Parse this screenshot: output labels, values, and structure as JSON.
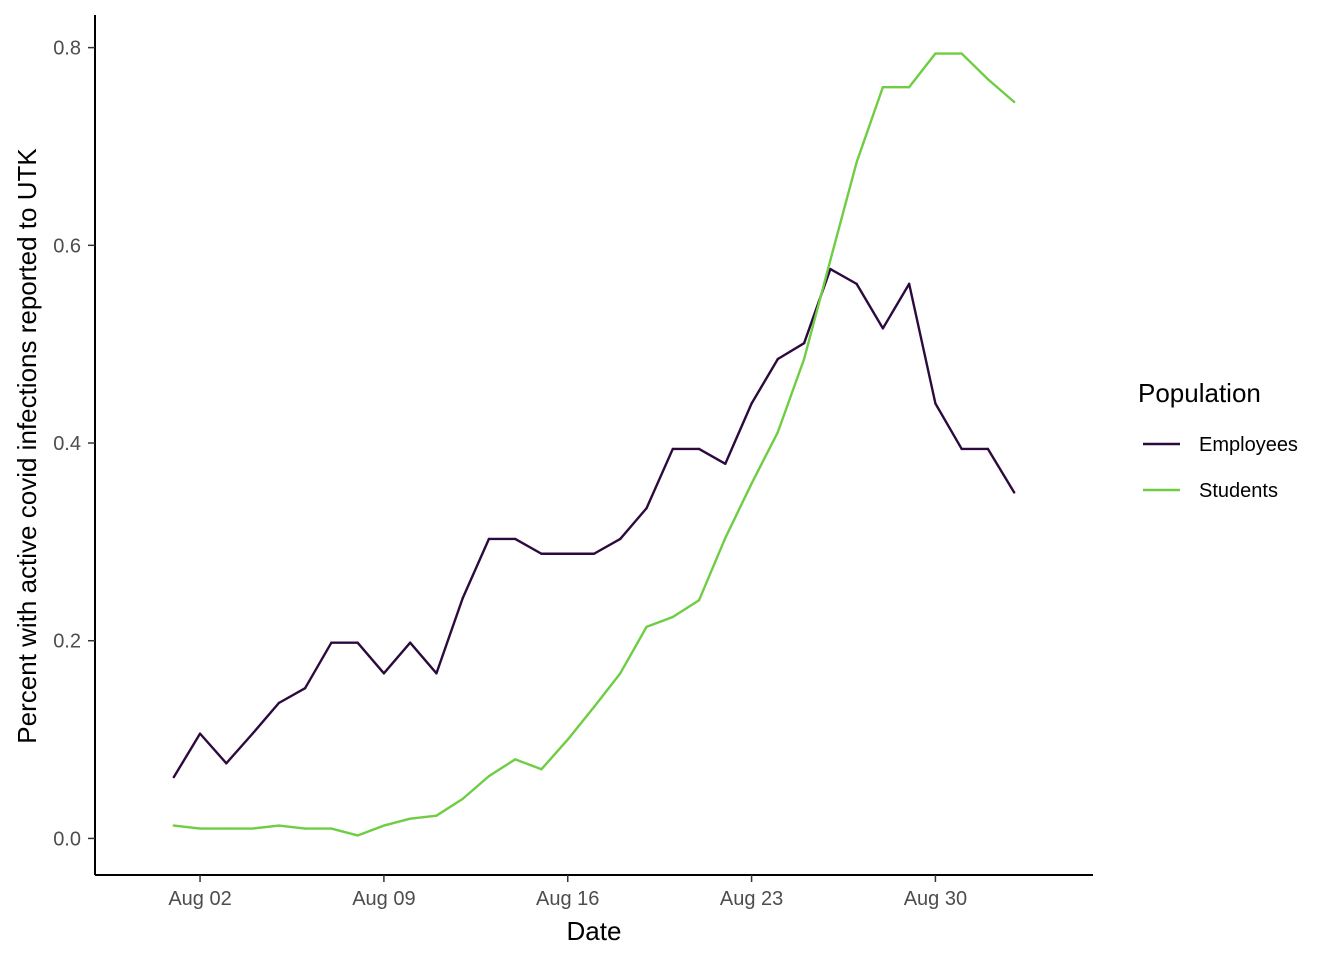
{
  "chart_data": {
    "type": "line",
    "title": "",
    "xlabel": "Date",
    "ylabel": "Percent with active covid infections reported to UTK",
    "x_axis": {
      "type": "date",
      "range": [
        "2020-07-29",
        "2020-09-05"
      ],
      "ticks": [
        {
          "value": "2020-08-02",
          "label": "Aug 02"
        },
        {
          "value": "2020-08-09",
          "label": "Aug 09"
        },
        {
          "value": "2020-08-16",
          "label": "Aug 16"
        },
        {
          "value": "2020-08-23",
          "label": "Aug 23"
        },
        {
          "value": "2020-08-30",
          "label": "Aug 30"
        }
      ]
    },
    "y_axis": {
      "range": [
        -0.037,
        0.833
      ],
      "ticks": [
        {
          "value": 0.0,
          "label": "0.0"
        },
        {
          "value": 0.2,
          "label": "0.2"
        },
        {
          "value": 0.4,
          "label": "0.4"
        },
        {
          "value": 0.6,
          "label": "0.6"
        },
        {
          "value": 0.8,
          "label": "0.8"
        }
      ]
    },
    "grid": false,
    "legend": {
      "title": "Population",
      "position": "right"
    },
    "x": [
      "2020-08-01",
      "2020-08-02",
      "2020-08-03",
      "2020-08-04",
      "2020-08-05",
      "2020-08-06",
      "2020-08-07",
      "2020-08-08",
      "2020-08-09",
      "2020-08-10",
      "2020-08-11",
      "2020-08-12",
      "2020-08-13",
      "2020-08-14",
      "2020-08-15",
      "2020-08-16",
      "2020-08-17",
      "2020-08-18",
      "2020-08-19",
      "2020-08-20",
      "2020-08-21",
      "2020-08-22",
      "2020-08-23",
      "2020-08-24",
      "2020-08-25",
      "2020-08-26",
      "2020-08-27",
      "2020-08-28",
      "2020-08-29",
      "2020-08-30",
      "2020-08-31",
      "2020-09-01",
      "2020-09-02"
    ],
    "series": [
      {
        "name": "Employees",
        "color": "#2d0a3e",
        "values": [
          0.062,
          0.106,
          0.076,
          0.106,
          0.137,
          0.152,
          0.198,
          0.198,
          0.167,
          0.198,
          0.167,
          0.243,
          0.303,
          0.303,
          0.288,
          0.288,
          0.288,
          0.303,
          0.334,
          0.394,
          0.394,
          0.379,
          0.44,
          0.485,
          0.501,
          0.576,
          0.561,
          0.516,
          0.561,
          0.44,
          0.394,
          0.394,
          0.35
        ]
      },
      {
        "name": "Students",
        "color": "#6fcd44",
        "values": [
          0.013,
          0.01,
          0.01,
          0.01,
          0.013,
          0.01,
          0.01,
          0.003,
          0.013,
          0.02,
          0.023,
          0.04,
          0.063,
          0.08,
          0.07,
          0.1,
          0.133,
          0.167,
          0.214,
          0.224,
          0.241,
          0.304,
          0.359,
          0.411,
          0.485,
          0.585,
          0.684,
          0.76,
          0.76,
          0.794,
          0.794,
          0.768,
          0.745
        ]
      }
    ]
  }
}
